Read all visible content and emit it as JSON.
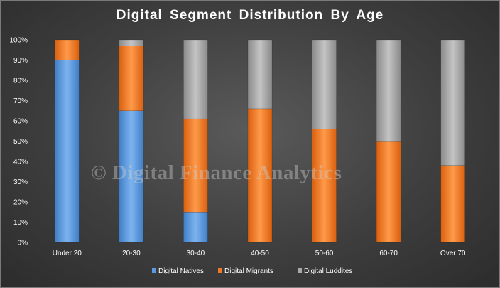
{
  "chart_data": {
    "type": "bar",
    "stacked": true,
    "title": "Digital Segment Distribution By Age",
    "categories": [
      "Under 20",
      "20-30",
      "30-40",
      "40-50",
      "50-60",
      "60-70",
      "Over 70"
    ],
    "series": [
      {
        "name": "Digital Natives",
        "color": "#5a9be0",
        "values": [
          90,
          65,
          15,
          0,
          0,
          0,
          0
        ]
      },
      {
        "name": "Digital Migrants",
        "color": "#f0782a",
        "values": [
          10,
          32,
          46,
          66,
          56,
          50,
          38
        ]
      },
      {
        "name": "Digital Luddites",
        "color": "#a9a9a9",
        "values": [
          0,
          3,
          39,
          34,
          44,
          50,
          62
        ]
      }
    ],
    "yticks": [
      "0%",
      "10%",
      "20%",
      "30%",
      "40%",
      "50%",
      "60%",
      "70%",
      "80%",
      "90%",
      "100%"
    ],
    "ylim": [
      0,
      100
    ],
    "grid": false,
    "legend_position": "bottom"
  },
  "watermark": "© Digital Finance Analytics"
}
